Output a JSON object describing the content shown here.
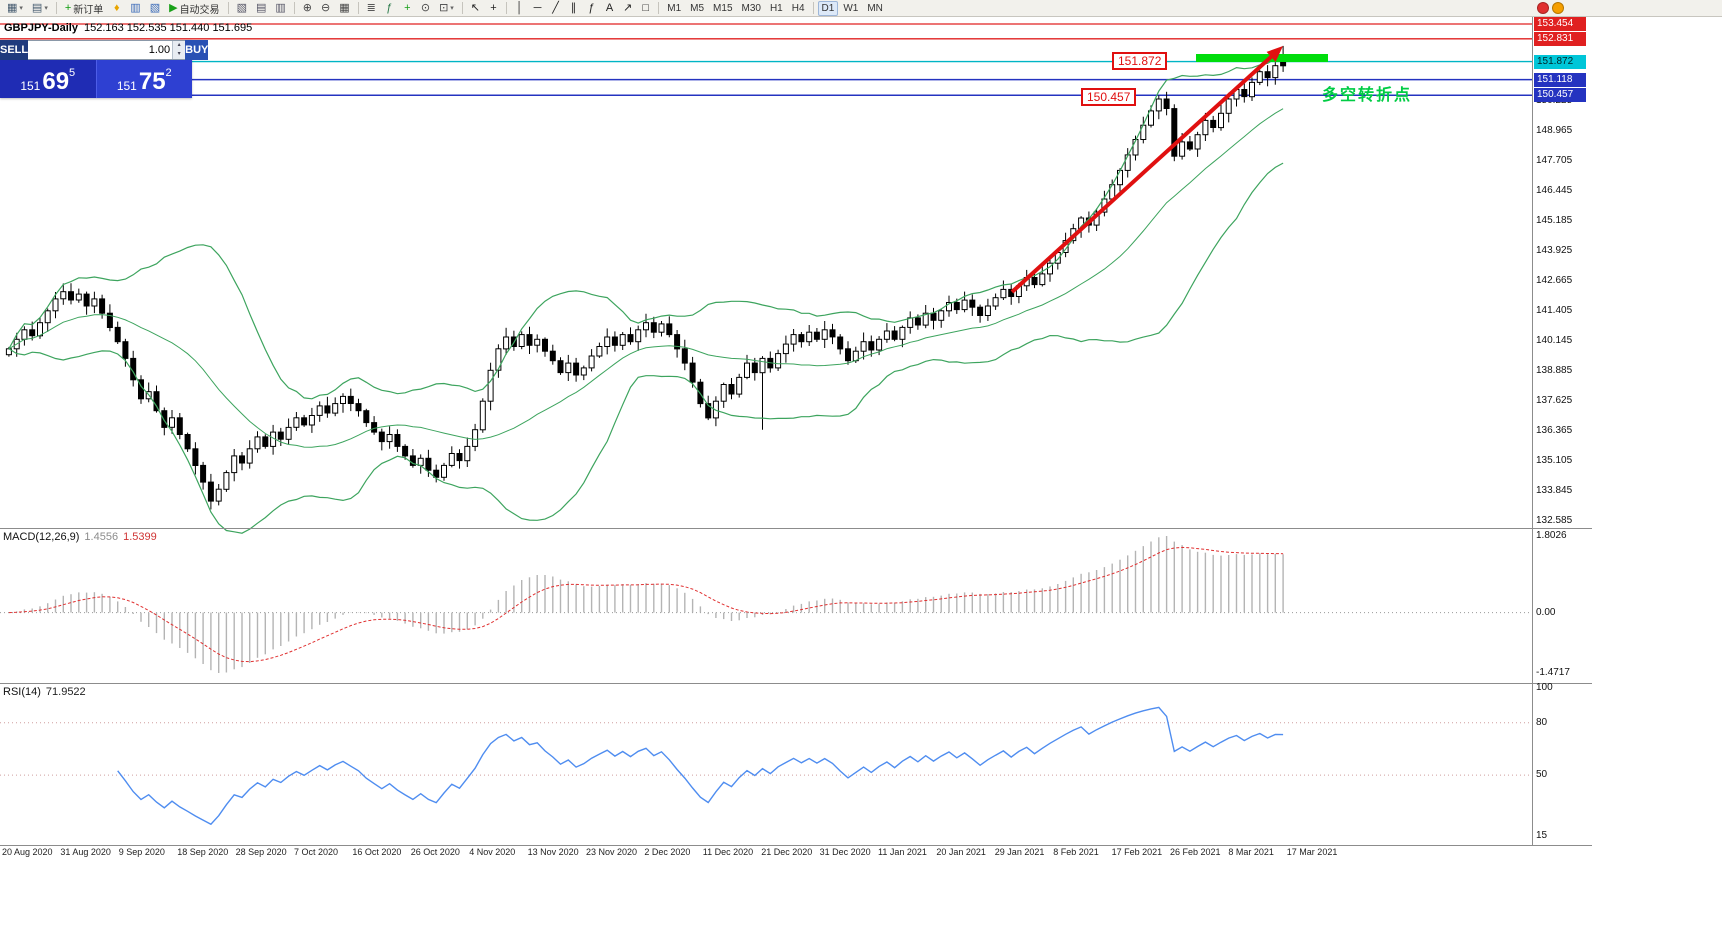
{
  "toolbar": {
    "items": [
      {
        "name": "chart-type-icon",
        "glyph": "▦",
        "color": "#445a6e",
        "caret": true
      },
      {
        "name": "chart-profiles-icon",
        "glyph": "▤",
        "color": "#445a6e",
        "caret": true
      },
      {
        "type": "sep"
      },
      {
        "name": "new-order-button",
        "glyph": "+",
        "color": "#0c9c0c",
        "label": "新订单"
      },
      {
        "name": "metaeditor-icon",
        "glyph": "♦",
        "color": "#e8a500"
      },
      {
        "name": "market-watch-icon",
        "glyph": "▥",
        "color": "#3a6ab8"
      },
      {
        "name": "navigator-icon",
        "glyph": "▧",
        "color": "#3a6ab8"
      },
      {
        "name": "autotrading-button",
        "glyph": "▶",
        "color": "#18a018",
        "label": "自动交易"
      },
      {
        "type": "sep"
      },
      {
        "name": "new-chart-icon",
        "glyph": "▧",
        "color": "#556"
      },
      {
        "name": "tile-horizontal-icon",
        "glyph": "▤",
        "color": "#556"
      },
      {
        "name": "tile-vertical-icon",
        "glyph": "▥",
        "color": "#556"
      },
      {
        "type": "sep"
      },
      {
        "name": "zoom-in-icon",
        "glyph": "⊕",
        "color": "#444"
      },
      {
        "name": "zoom-out-icon",
        "glyph": "⊖",
        "color": "#444"
      },
      {
        "name": "tile-windows-icon",
        "glyph": "▦",
        "color": "#444"
      },
      {
        "type": "sep"
      },
      {
        "name": "indicators-list-icon",
        "glyph": "≣",
        "color": "#444"
      },
      {
        "name": "objects-list-icon",
        "glyph": "ƒ",
        "color": "#2a7a4a"
      },
      {
        "name": "data-window-icon",
        "glyph": "+",
        "color": "#18a018"
      },
      {
        "name": "period-clock-icon",
        "glyph": "⊙",
        "color": "#444"
      },
      {
        "name": "templates-icon",
        "glyph": "⊡",
        "color": "#444",
        "caret": true
      },
      {
        "type": "sep"
      },
      {
        "name": "cursor-icon",
        "glyph": "↖",
        "color": "#222"
      },
      {
        "name": "crosshair-icon",
        "glyph": "+",
        "color": "#222"
      },
      {
        "type": "sep"
      },
      {
        "name": "vertical-line-icon",
        "glyph": "│",
        "color": "#222"
      },
      {
        "name": "horizontal-line-icon",
        "glyph": "─",
        "color": "#222"
      },
      {
        "name": "trendline-icon",
        "glyph": "╱",
        "color": "#222"
      },
      {
        "name": "equidistant-channel-icon",
        "glyph": "∥",
        "color": "#222"
      },
      {
        "name": "fibonacci-icon",
        "glyph": "ƒ",
        "color": "#222"
      },
      {
        "name": "text-icon",
        "glyph": "A",
        "color": "#222"
      },
      {
        "name": "arrows-icon",
        "glyph": "↗",
        "color": "#222"
      },
      {
        "name": "shapes-icon",
        "glyph": "□",
        "color": "#222"
      },
      {
        "type": "sep"
      },
      {
        "name": "timeframe-m1",
        "label": "M1"
      },
      {
        "name": "timeframe-m5",
        "label": "M5"
      },
      {
        "name": "timeframe-m15",
        "label": "M15"
      },
      {
        "name": "timeframe-m30",
        "label": "M30"
      },
      {
        "name": "timeframe-h1",
        "label": "H1"
      },
      {
        "name": "timeframe-h4",
        "label": "H4"
      },
      {
        "type": "sep"
      },
      {
        "name": "timeframe-d1",
        "label": "D1",
        "active": true
      },
      {
        "name": "timeframe-w1",
        "label": "W1"
      },
      {
        "name": "timeframe-mn",
        "label": "MN"
      }
    ]
  },
  "alerts": {
    "red": "#e03030",
    "orange": "#f59f00"
  },
  "quote": {
    "symbol": "GBPJPY-Daily",
    "ohlc": "152.163 152.535 151.440 151.695"
  },
  "widget": {
    "sell_label": "SELL",
    "buy_label": "BUY",
    "volume": "1.00",
    "sell_price": {
      "small": "151",
      "big": "69",
      "sup": "5"
    },
    "buy_price": {
      "small": "151",
      "big": "75",
      "sup": "2"
    }
  },
  "annotations": {
    "box1": "151.872",
    "box2": "150.457",
    "note": "多空转折点",
    "note_color": "#00cc44",
    "zone_color": "#00dd0c",
    "arrow_color": "#e01010"
  },
  "chart_data": {
    "type": "candlestick",
    "title": "GBPJPY-Daily",
    "symbol": "GBPJPY",
    "timeframe": "Daily",
    "ohlc_current": [
      152.163,
      152.535,
      151.44,
      151.695
    ],
    "ylim": [
      132.27,
      153.79
    ],
    "closes": [
      139.8,
      140.2,
      140.6,
      140.35,
      140.9,
      141.4,
      141.9,
      142.2,
      141.85,
      142.1,
      141.6,
      141.9,
      141.3,
      140.7,
      140.1,
      139.4,
      138.5,
      137.7,
      138.0,
      137.2,
      136.5,
      136.9,
      136.2,
      135.6,
      134.9,
      134.2,
      133.4,
      133.9,
      134.6,
      135.3,
      135.0,
      135.6,
      136.1,
      135.7,
      136.3,
      136.0,
      136.5,
      136.9,
      136.6,
      137.0,
      137.4,
      137.1,
      137.5,
      137.8,
      137.5,
      137.2,
      136.7,
      136.3,
      135.9,
      136.2,
      135.7,
      135.3,
      134.9,
      135.2,
      134.7,
      134.4,
      134.9,
      135.4,
      135.1,
      135.7,
      136.4,
      137.6,
      138.9,
      139.8,
      140.3,
      139.9,
      140.4,
      139.95,
      140.2,
      139.7,
      139.3,
      138.8,
      139.2,
      138.7,
      139.0,
      139.5,
      139.9,
      140.3,
      139.95,
      140.4,
      140.1,
      140.6,
      140.9,
      140.5,
      140.85,
      140.4,
      139.8,
      139.2,
      138.4,
      137.5,
      136.9,
      137.6,
      138.3,
      137.9,
      138.6,
      139.2,
      138.8,
      139.4,
      139.0,
      139.6,
      140.0,
      140.4,
      140.1,
      140.5,
      140.2,
      140.6,
      140.3,
      139.8,
      139.3,
      139.7,
      140.1,
      139.75,
      140.2,
      140.55,
      140.2,
      140.7,
      141.1,
      140.8,
      141.3,
      141.0,
      141.4,
      141.75,
      141.45,
      141.85,
      141.55,
      141.2,
      141.6,
      141.95,
      142.3,
      142.0,
      142.45,
      142.8,
      142.5,
      142.95,
      143.4,
      143.85,
      144.35,
      144.85,
      145.3,
      145.0,
      145.55,
      146.1,
      146.7,
      147.3,
      147.95,
      148.6,
      149.2,
      149.8,
      150.3,
      149.9,
      147.9,
      148.5,
      148.2,
      148.8,
      149.4,
      149.1,
      149.7,
      150.3,
      150.7,
      150.4,
      151.0,
      151.45,
      151.2,
      151.7,
      151.695
    ],
    "wick_high_overrides": {
      "7": 142.55,
      "148": 150.45
    },
    "wick_low_overrides": {
      "26": 133.05,
      "97": 136.4
    },
    "price_ticks": [
      "150.225",
      "148.965",
      "147.705",
      "146.445",
      "145.185",
      "143.925",
      "142.665",
      "141.405",
      "140.145",
      "138.885",
      "137.625",
      "136.365",
      "135.105",
      "133.845",
      "132.585"
    ],
    "levels": [
      {
        "value": 153.454,
        "label": "153.454",
        "line": "#e02020",
        "w": 1.3,
        "badge": "#e02020",
        "fg": "#fff"
      },
      {
        "value": 152.831,
        "label": "152.831",
        "line": "#e02020",
        "w": 1.4,
        "badge": "#e02020",
        "fg": "#fff"
      },
      {
        "value": 151.872,
        "label": "151.872",
        "line": "#00b5c5",
        "w": 1.4,
        "badge": "#00c6d8",
        "fg": "#00262a"
      },
      {
        "value": 151.118,
        "label": "151.118",
        "line": "#2433c0",
        "w": 1.5,
        "badge": "#2433c0",
        "fg": "#fff"
      },
      {
        "value": 150.457,
        "label": "150.457",
        "line": "#2433c0",
        "w": 1.5,
        "badge": "#2433c0",
        "fg": "#fff"
      }
    ],
    "overlays": {
      "name": "Bollinger Bands",
      "period": 20,
      "deviation": 2,
      "color": "#3da45e"
    },
    "indicators": [
      {
        "name": "MACD(12,26,9)",
        "value1": "1.4556",
        "value2": "1.5399",
        "scale": [
          "1.8026",
          "0.00",
          "-1.4717"
        ],
        "histogram_color": "#b4b4b4",
        "signal_color": "#e03030"
      },
      {
        "name": "RSI(14)",
        "value1": "71.9522",
        "scale": [
          "100",
          "80",
          "50",
          "15"
        ],
        "line_color": "#4f8df0"
      }
    ],
    "x_labels": [
      "20 Aug 2020",
      "31 Aug 2020",
      "9 Sep 2020",
      "18 Sep 2020",
      "28 Sep 2020",
      "7 Oct 2020",
      "16 Oct 2020",
      "26 Oct 2020",
      "4 Nov 2020",
      "13 Nov 2020",
      "23 Nov 2020",
      "2 Dec 2020",
      "11 Dec 2020",
      "21 Dec 2020",
      "31 Dec 2020",
      "11 Jan 2021",
      "20 Jan 2021",
      "29 Jan 2021",
      "8 Feb 2021",
      "17 Feb 2021",
      "26 Feb 2021",
      "8 Mar 2021",
      "17 Mar 2021"
    ]
  }
}
